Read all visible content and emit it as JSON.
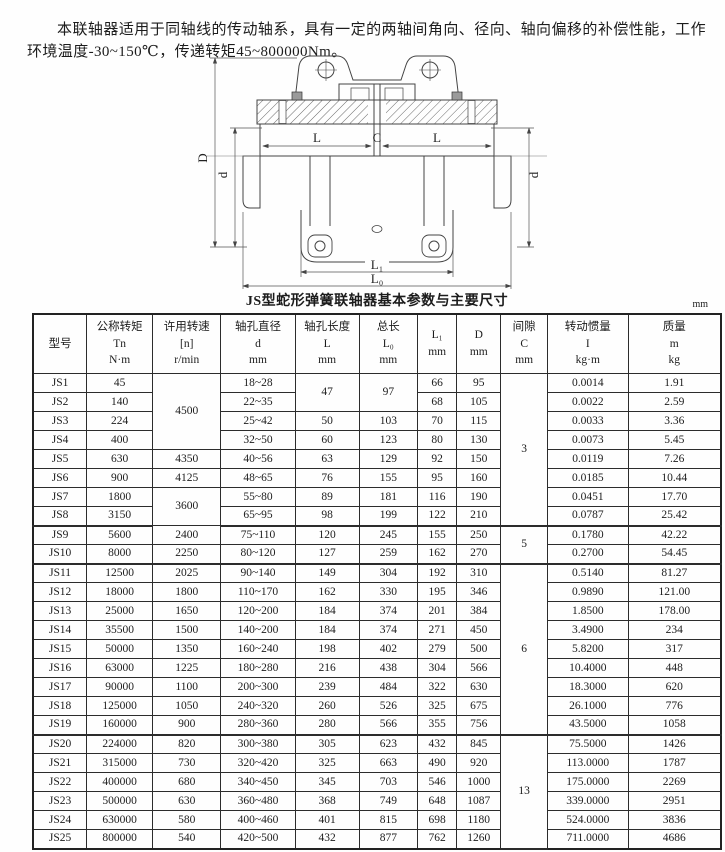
{
  "intro": {
    "text": "本联轴器适用于同轴线的传动轴系，具有一定的两轴间角向、径向、轴向偏移的补偿性能，工作环境温度-30~150℃，传递转矩45~800000Nm。"
  },
  "drawing": {
    "labels": {
      "D": "D",
      "d_left": "d",
      "d_right": "d",
      "L_left": "L",
      "C": "C",
      "L_right": "L",
      "L1": "L₁",
      "L0": "L₀"
    }
  },
  "table": {
    "title": "JS型蛇形弹簧联轴器基本参数与主要尺寸",
    "unit": "mm",
    "headers": [
      [
        "型号"
      ],
      [
        "公称转矩",
        "Tn",
        "N·m"
      ],
      [
        "许用转速",
        "[n]",
        "r/min"
      ],
      [
        "轴孔直径",
        "d",
        "mm"
      ],
      [
        "轴孔长度",
        "L",
        "mm"
      ],
      [
        "总长",
        "L₀",
        "mm"
      ],
      [
        "L₁",
        "mm"
      ],
      [
        "D",
        "mm"
      ],
      [
        "间隙",
        "C",
        "mm"
      ],
      [
        "转动惯量",
        "I",
        "kg·m"
      ],
      [
        "质量",
        "m",
        "kg"
      ]
    ],
    "rows": [
      [
        "JS1",
        "45",
        {
          "v": "4500",
          "rs": 4
        },
        "18~28",
        {
          "v": "47",
          "rs": 2
        },
        {
          "v": "97",
          "rs": 2
        },
        "66",
        "95",
        {
          "v": "3",
          "rs": 8
        },
        "0.0014",
        "1.91"
      ],
      [
        "JS2",
        "140",
        null,
        "22~35",
        null,
        null,
        "68",
        "105",
        null,
        "0.0022",
        "2.59"
      ],
      [
        "JS3",
        "224",
        null,
        "25~42",
        "50",
        "103",
        "70",
        "115",
        null,
        "0.0033",
        "3.36"
      ],
      [
        "JS4",
        "400",
        null,
        "32~50",
        "60",
        "123",
        "80",
        "130",
        null,
        "0.0073",
        "5.45"
      ],
      [
        "JS5",
        "630",
        "4350",
        "40~56",
        "63",
        "129",
        "92",
        "150",
        null,
        "0.0119",
        "7.26"
      ],
      [
        "JS6",
        "900",
        "4125",
        "48~65",
        "76",
        "155",
        "95",
        "160",
        null,
        "0.0185",
        "10.44"
      ],
      [
        "JS7",
        "1800",
        {
          "v": "3600",
          "rs": 2
        },
        "55~80",
        "89",
        "181",
        "116",
        "190",
        null,
        "0.0451",
        "17.70"
      ],
      [
        "JS8",
        "3150",
        null,
        "65~95",
        "98",
        "199",
        "122",
        "210",
        null,
        "0.0787",
        "25.42"
      ],
      [
        "JS9",
        "5600",
        "2400",
        "75~110",
        "120",
        "245",
        "155",
        "250",
        {
          "v": "5",
          "rs": 2
        },
        "0.1780",
        "42.22"
      ],
      [
        "JS10",
        "8000",
        "2250",
        "80~120",
        "127",
        "259",
        "162",
        "270",
        null,
        "0.2700",
        "54.45"
      ],
      [
        "JS11",
        "12500",
        "2025",
        "90~140",
        "149",
        "304",
        "192",
        "310",
        {
          "v": "6",
          "rs": 9
        },
        "0.5140",
        "81.27"
      ],
      [
        "JS12",
        "18000",
        "1800",
        "110~170",
        "162",
        "330",
        "195",
        "346",
        null,
        "0.9890",
        "121.00"
      ],
      [
        "JS13",
        "25000",
        "1650",
        "120~200",
        "184",
        "374",
        "201",
        "384",
        null,
        "1.8500",
        "178.00"
      ],
      [
        "JS14",
        "35500",
        "1500",
        "140~200",
        "184",
        "374",
        "271",
        "450",
        null,
        "3.4900",
        "234"
      ],
      [
        "JS15",
        "50000",
        "1350",
        "160~240",
        "198",
        "402",
        "279",
        "500",
        null,
        "5.8200",
        "317"
      ],
      [
        "JS16",
        "63000",
        "1225",
        "180~280",
        "216",
        "438",
        "304",
        "566",
        null,
        "10.4000",
        "448"
      ],
      [
        "JS17",
        "90000",
        "1100",
        "200~300",
        "239",
        "484",
        "322",
        "630",
        null,
        "18.3000",
        "620"
      ],
      [
        "JS18",
        "125000",
        "1050",
        "240~320",
        "260",
        "526",
        "325",
        "675",
        null,
        "26.1000",
        "776"
      ],
      [
        "JS19",
        "160000",
        "900",
        "280~360",
        "280",
        "566",
        "355",
        "756",
        null,
        "43.5000",
        "1058"
      ],
      [
        "JS20",
        "224000",
        "820",
        "300~380",
        "305",
        "623",
        "432",
        "845",
        {
          "v": "13",
          "rs": 6
        },
        "75.5000",
        "1426"
      ],
      [
        "JS21",
        "315000",
        "730",
        "320~420",
        "325",
        "663",
        "490",
        "920",
        null,
        "113.0000",
        "1787"
      ],
      [
        "JS22",
        "400000",
        "680",
        "340~450",
        "345",
        "703",
        "546",
        "1000",
        null,
        "175.0000",
        "2269"
      ],
      [
        "JS23",
        "500000",
        "630",
        "360~480",
        "368",
        "749",
        "648",
        "1087",
        null,
        "339.0000",
        "2951"
      ],
      [
        "JS24",
        "630000",
        "580",
        "400~460",
        "401",
        "815",
        "698",
        "1180",
        null,
        "524.0000",
        "3836"
      ],
      [
        "JS25",
        "800000",
        "540",
        "420~500",
        "432",
        "877",
        "762",
        "1260",
        null,
        "711.0000",
        "4686"
      ]
    ]
  }
}
